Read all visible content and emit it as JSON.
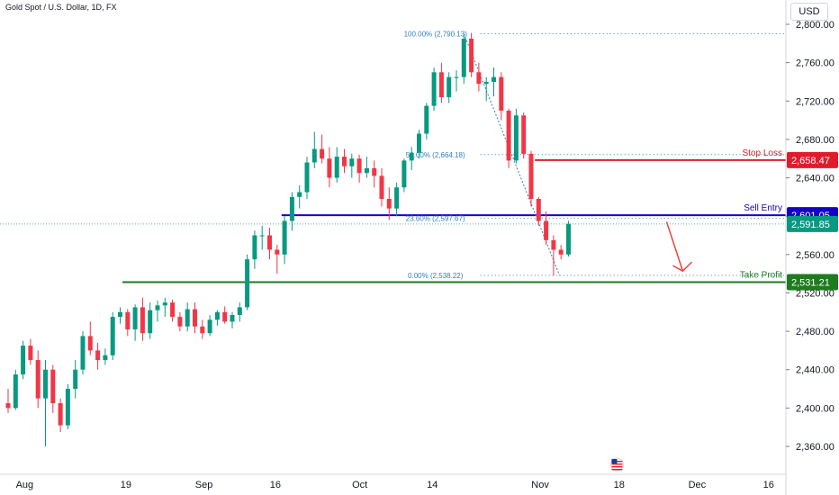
{
  "header": {
    "title": "Gold Spot / U.S. Dollar, 1D, FX"
  },
  "currency": "USD",
  "colors": {
    "up": "#089981",
    "down": "#f23645",
    "sell": "#1400c8",
    "stop": "#e01c2a",
    "tp": "#1e7b1e",
    "fib": "#2f7fc1",
    "arrow": "#e8443e"
  },
  "chart_data": {
    "type": "candlestick",
    "ylim": [
      2320,
      2810
    ],
    "y_ticks": [
      "2,800.00",
      "2,760.00",
      "2,720.00",
      "2,680.00",
      "2,640.00",
      "2,600.00",
      "2,560.00",
      "2,520.00",
      "2,480.00",
      "2,440.00",
      "2,400.00",
      "2,360.00"
    ],
    "y_tick_values": [
      2800,
      2760,
      2720,
      2680,
      2640,
      2600,
      2560,
      2520,
      2480,
      2440,
      2400,
      2360
    ],
    "x_labels": [
      {
        "label": "Aug",
        "index": 2
      },
      {
        "label": "19",
        "index": 16
      },
      {
        "label": "Sep",
        "index": 26
      },
      {
        "label": "16",
        "index": 36
      },
      {
        "label": "Oct",
        "index": 47
      },
      {
        "label": "14",
        "index": 57
      },
      {
        "label": "Nov",
        "index": 71
      },
      {
        "label": "18",
        "index": 82
      },
      {
        "label": "Dec",
        "index": 92
      },
      {
        "label": "16",
        "index": 102
      }
    ],
    "candles": [
      [
        2405,
        2420,
        2395,
        2400
      ],
      [
        2400,
        2440,
        2398,
        2435
      ],
      [
        2435,
        2470,
        2430,
        2465
      ],
      [
        2465,
        2472,
        2445,
        2450
      ],
      [
        2450,
        2460,
        2400,
        2410
      ],
      [
        2410,
        2450,
        2360,
        2440
      ],
      [
        2440,
        2445,
        2395,
        2405
      ],
      [
        2405,
        2410,
        2375,
        2382
      ],
      [
        2382,
        2425,
        2378,
        2420
      ],
      [
        2420,
        2450,
        2410,
        2440
      ],
      [
        2440,
        2480,
        2435,
        2475
      ],
      [
        2475,
        2490,
        2455,
        2460
      ],
      [
        2460,
        2468,
        2440,
        2450
      ],
      [
        2450,
        2462,
        2445,
        2455
      ],
      [
        2455,
        2500,
        2450,
        2495
      ],
      [
        2495,
        2505,
        2488,
        2500
      ],
      [
        2500,
        2503,
        2475,
        2482
      ],
      [
        2482,
        2508,
        2470,
        2505
      ],
      [
        2505,
        2515,
        2470,
        2478
      ],
      [
        2478,
        2510,
        2472,
        2502
      ],
      [
        2502,
        2512,
        2490,
        2507
      ],
      [
        2507,
        2515,
        2495,
        2510
      ],
      [
        2510,
        2513,
        2490,
        2495
      ],
      [
        2495,
        2500,
        2480,
        2485
      ],
      [
        2485,
        2510,
        2480,
        2503
      ],
      [
        2503,
        2510,
        2478,
        2485
      ],
      [
        2485,
        2492,
        2472,
        2478
      ],
      [
        2478,
        2497,
        2475,
        2492
      ],
      [
        2492,
        2502,
        2486,
        2500
      ],
      [
        2500,
        2506,
        2488,
        2490
      ],
      [
        2490,
        2500,
        2483,
        2497
      ],
      [
        2497,
        2510,
        2490,
        2505
      ],
      [
        2505,
        2560,
        2502,
        2555
      ],
      [
        2555,
        2585,
        2545,
        2580
      ],
      [
        2580,
        2590,
        2565,
        2580
      ],
      [
        2580,
        2588,
        2555,
        2565
      ],
      [
        2565,
        2570,
        2540,
        2560
      ],
      [
        2560,
        2600,
        2550,
        2595
      ],
      [
        2595,
        2625,
        2585,
        2620
      ],
      [
        2620,
        2632,
        2608,
        2625
      ],
      [
        2625,
        2662,
        2618,
        2656
      ],
      [
        2656,
        2688,
        2650,
        2670
      ],
      [
        2670,
        2685,
        2655,
        2660
      ],
      [
        2660,
        2672,
        2630,
        2640
      ],
      [
        2640,
        2672,
        2635,
        2662
      ],
      [
        2662,
        2670,
        2645,
        2652
      ],
      [
        2652,
        2665,
        2640,
        2660
      ],
      [
        2660,
        2664,
        2635,
        2645
      ],
      [
        2645,
        2662,
        2640,
        2650
      ],
      [
        2650,
        2658,
        2630,
        2642
      ],
      [
        2642,
        2650,
        2610,
        2618
      ],
      [
        2618,
        2630,
        2596,
        2608
      ],
      [
        2608,
        2635,
        2600,
        2630
      ],
      [
        2630,
        2660,
        2625,
        2658
      ],
      [
        2658,
        2672,
        2648,
        2666
      ],
      [
        2666,
        2690,
        2660,
        2686
      ],
      [
        2686,
        2718,
        2680,
        2715
      ],
      [
        2715,
        2755,
        2710,
        2750
      ],
      [
        2750,
        2760,
        2718,
        2724
      ],
      [
        2724,
        2750,
        2718,
        2745
      ],
      [
        2745,
        2752,
        2730,
        2745
      ],
      [
        2745,
        2790,
        2738,
        2785
      ],
      [
        2785,
        2791,
        2745,
        2750
      ],
      [
        2750,
        2760,
        2730,
        2738
      ],
      [
        2738,
        2745,
        2720,
        2740
      ],
      [
        2740,
        2755,
        2725,
        2745
      ],
      [
        2745,
        2750,
        2700,
        2710
      ],
      [
        2710,
        2712,
        2650,
        2658
      ],
      [
        2658,
        2712,
        2655,
        2705
      ],
      [
        2705,
        2708,
        2660,
        2665
      ],
      [
        2665,
        2668,
        2610,
        2618
      ],
      [
        2618,
        2620,
        2590,
        2595
      ],
      [
        2595,
        2605,
        2570,
        2575
      ],
      [
        2575,
        2580,
        2538,
        2565
      ],
      [
        2565,
        2570,
        2555,
        2560
      ],
      [
        2560,
        2595,
        2558,
        2592
      ]
    ],
    "levels": {
      "sell_entry": {
        "label": "Sell Entry",
        "value": 2601.05,
        "tag": "2,601.05"
      },
      "stop_loss": {
        "label": "Stop Loss",
        "value": 2658.47,
        "tag": "2,658.47"
      },
      "take_profit": {
        "label": "Take Profit",
        "value": 2531.21,
        "tag": "2,531.21"
      },
      "last_price": {
        "value": 2591.85,
        "tag": "2,591.85"
      }
    },
    "fib": [
      {
        "label": "100.00% (2,790.13)",
        "value": 2790.13
      },
      {
        "label": "50.00% (2,664.18)",
        "value": 2664.18
      },
      {
        "label": "23.60% (2,597.67)",
        "value": 2597.67
      },
      {
        "label": "0.00% (2,538.22)",
        "value": 2538.22
      }
    ]
  }
}
